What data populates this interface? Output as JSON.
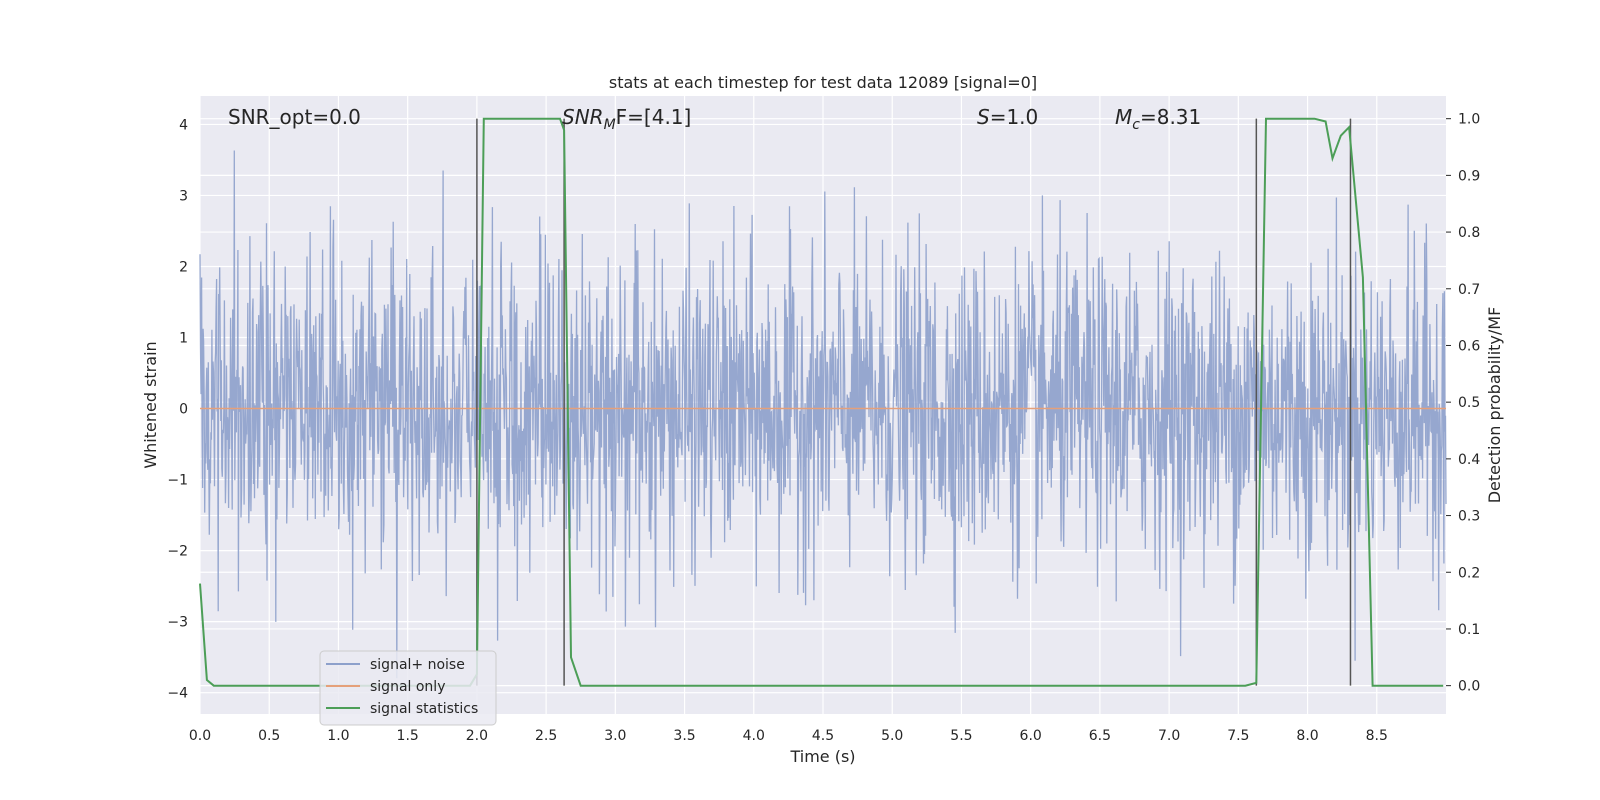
{
  "chart_data": {
    "type": "line",
    "title": "stats at each timestep for test data 12089 [signal=0]",
    "xlabel": "Time (s)",
    "ylabel": "Whitened strain",
    "ylabel_right": "Detection probability/MF",
    "xlim": [
      0.0,
      9.0
    ],
    "ylim": [
      -4.3,
      4.4
    ],
    "ylim_right": [
      -0.05,
      1.04
    ],
    "xticks": [
      "0.0",
      "0.5",
      "1.0",
      "1.5",
      "2.0",
      "2.5",
      "3.0",
      "3.5",
      "4.0",
      "4.5",
      "5.0",
      "5.5",
      "6.0",
      "6.5",
      "7.0",
      "7.5",
      "8.0",
      "8.5"
    ],
    "yticks": [
      "4",
      "3",
      "2",
      "1",
      "0",
      "−1",
      "−2",
      "−3",
      "−4"
    ],
    "yticks_right": [
      "1.0",
      "0.9",
      "0.8",
      "0.7",
      "0.6",
      "0.5",
      "0.4",
      "0.3",
      "0.2",
      "0.1",
      "0.0"
    ],
    "grid": true,
    "legend_position": "lower-left",
    "annotations": {
      "snr_opt": "SNR_opt=0.0",
      "snr_mf_sym": "SNR",
      "snr_mf_sub": "M",
      "snr_mf_rest": "F=[4.1]",
      "s_sym": "S",
      "s_rest": "=1.0",
      "mc_sym": "M",
      "mc_sub": "c",
      "mc_rest": "=8.31"
    },
    "vertical_lines_x": [
      2.0,
      2.63,
      7.63,
      8.31
    ],
    "series": [
      {
        "name": "signal+ noise",
        "color": "#8da0cb",
        "axis": "left",
        "description_values": "whitened noise, roughly within [-4, 4]",
        "envelope_max": 3.9,
        "envelope_min": -3.95
      },
      {
        "name": "signal only",
        "color": "#e5a07a",
        "axis": "left",
        "values_constant": 0.0
      },
      {
        "name": "signal statistics",
        "color": "#4c9e57",
        "axis": "right",
        "x": [
          0.0,
          0.05,
          0.1,
          0.15,
          1.95,
          2.0,
          2.05,
          2.6,
          2.63,
          2.68,
          2.75,
          7.55,
          7.63,
          7.7,
          8.05,
          8.13,
          8.18,
          8.24,
          8.3,
          8.4,
          8.47,
          8.55,
          8.98
        ],
        "y": [
          0.18,
          0.01,
          0.0,
          0.0,
          0.0,
          0.02,
          1.0,
          1.0,
          0.98,
          0.05,
          0.0,
          0.0,
          0.005,
          1.0,
          1.0,
          0.995,
          0.93,
          0.97,
          0.985,
          0.72,
          0.0,
          0.0,
          0.0
        ]
      }
    ]
  }
}
